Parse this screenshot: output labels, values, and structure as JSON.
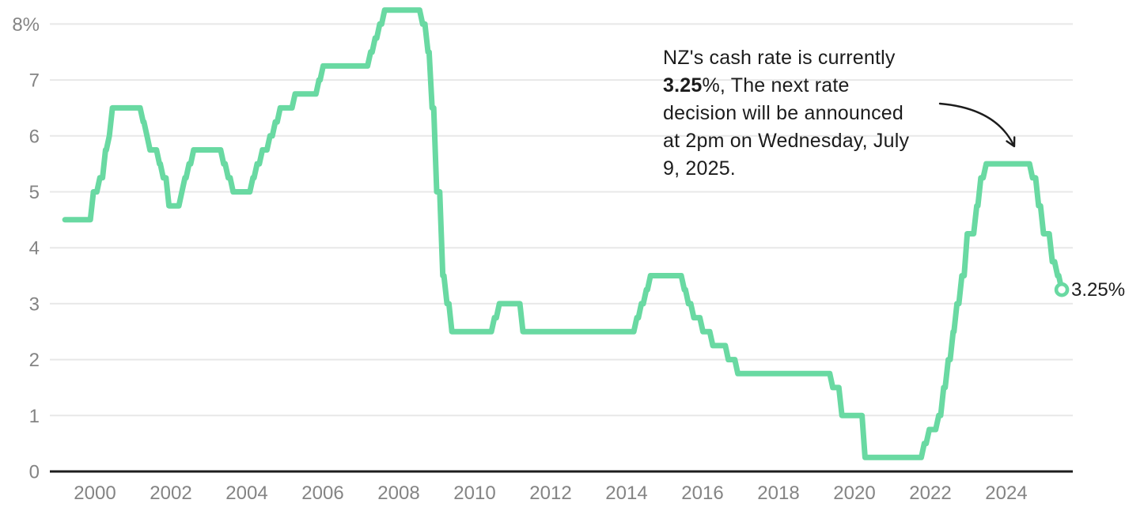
{
  "chart_data": {
    "type": "line",
    "subtype": "step",
    "title": "",
    "xlabel": "",
    "ylabel": "",
    "grid": true,
    "xlim": [
      1999.2,
      2025.6
    ],
    "ylim": [
      0,
      8.5
    ],
    "x_ticks": [
      {
        "value": 2000,
        "label": "2000"
      },
      {
        "value": 2002,
        "label": "2002"
      },
      {
        "value": 2004,
        "label": "2004"
      },
      {
        "value": 2006,
        "label": "2006"
      },
      {
        "value": 2008,
        "label": "2008"
      },
      {
        "value": 2010,
        "label": "2010"
      },
      {
        "value": 2012,
        "label": "2012"
      },
      {
        "value": 2014,
        "label": "2014"
      },
      {
        "value": 2016,
        "label": "2016"
      },
      {
        "value": 2018,
        "label": "2018"
      },
      {
        "value": 2020,
        "label": "2020"
      },
      {
        "value": 2022,
        "label": "2022"
      },
      {
        "value": 2024,
        "label": "2024"
      }
    ],
    "y_ticks": [
      {
        "value": 8,
        "label": "8%"
      },
      {
        "value": 7,
        "label": "7"
      },
      {
        "value": 6,
        "label": "6"
      },
      {
        "value": 5,
        "label": "5"
      },
      {
        "value": 4,
        "label": "4"
      },
      {
        "value": 3,
        "label": "3"
      },
      {
        "value": 2,
        "label": "2"
      },
      {
        "value": 1,
        "label": "1"
      },
      {
        "value": 0,
        "label": "0"
      }
    ],
    "steps": [
      [
        1999.21,
        4.5
      ],
      [
        1999.88,
        5.0
      ],
      [
        2000.05,
        5.25
      ],
      [
        2000.2,
        5.75
      ],
      [
        2000.3,
        6.0
      ],
      [
        2000.38,
        6.5
      ],
      [
        2001.19,
        6.25
      ],
      [
        2001.29,
        6.0
      ],
      [
        2001.37,
        5.75
      ],
      [
        2001.62,
        5.5
      ],
      [
        2001.72,
        5.25
      ],
      [
        2001.87,
        4.75
      ],
      [
        2002.21,
        5.0
      ],
      [
        2002.29,
        5.25
      ],
      [
        2002.4,
        5.5
      ],
      [
        2002.52,
        5.75
      ],
      [
        2003.31,
        5.5
      ],
      [
        2003.43,
        5.25
      ],
      [
        2003.56,
        5.0
      ],
      [
        2004.08,
        5.25
      ],
      [
        2004.19,
        5.5
      ],
      [
        2004.33,
        5.75
      ],
      [
        2004.53,
        6.0
      ],
      [
        2004.67,
        6.25
      ],
      [
        2004.8,
        6.5
      ],
      [
        2005.19,
        6.75
      ],
      [
        2005.82,
        7.0
      ],
      [
        2005.93,
        7.25
      ],
      [
        2007.18,
        7.5
      ],
      [
        2007.3,
        7.75
      ],
      [
        2007.42,
        8.0
      ],
      [
        2007.55,
        8.25
      ],
      [
        2008.55,
        8.0
      ],
      [
        2008.69,
        7.5
      ],
      [
        2008.8,
        6.5
      ],
      [
        2008.92,
        5.0
      ],
      [
        2009.08,
        3.5
      ],
      [
        2009.19,
        3.0
      ],
      [
        2009.32,
        2.5
      ],
      [
        2010.44,
        2.75
      ],
      [
        2010.57,
        3.0
      ],
      [
        2011.19,
        2.5
      ],
      [
        2014.19,
        2.75
      ],
      [
        2014.31,
        3.0
      ],
      [
        2014.44,
        3.25
      ],
      [
        2014.55,
        3.5
      ],
      [
        2015.44,
        3.25
      ],
      [
        2015.55,
        3.0
      ],
      [
        2015.69,
        2.75
      ],
      [
        2015.93,
        2.5
      ],
      [
        2016.19,
        2.25
      ],
      [
        2016.6,
        2.0
      ],
      [
        2016.85,
        1.75
      ],
      [
        2019.35,
        1.5
      ],
      [
        2019.59,
        1.0
      ],
      [
        2020.2,
        0.25
      ],
      [
        2021.76,
        0.5
      ],
      [
        2021.89,
        0.75
      ],
      [
        2022.14,
        1.0
      ],
      [
        2022.27,
        1.5
      ],
      [
        2022.39,
        2.0
      ],
      [
        2022.52,
        2.5
      ],
      [
        2022.62,
        3.0
      ],
      [
        2022.75,
        3.5
      ],
      [
        2022.89,
        4.25
      ],
      [
        2023.14,
        4.75
      ],
      [
        2023.25,
        5.25
      ],
      [
        2023.39,
        5.5
      ],
      [
        2024.61,
        5.25
      ],
      [
        2024.77,
        4.75
      ],
      [
        2024.9,
        4.25
      ],
      [
        2025.13,
        3.75
      ],
      [
        2025.27,
        3.5
      ],
      [
        2025.38,
        3.25
      ]
    ],
    "end_point": {
      "rate": 3.25,
      "label": "3.25%"
    }
  },
  "annotation": {
    "line1": "NZ's cash rate is currently",
    "line2_bold": "3.25",
    "line2_rest": "%, The next rate",
    "line3": "decision will be announced",
    "line4": "at 2pm on Wednesday, July",
    "line5": "9, 2025."
  },
  "colors": {
    "line": "#69d9a2",
    "grid": "#e8e8e8",
    "axis": "#1d1d1d",
    "tick_label": "#848484",
    "annotation_text": "#1c1c1c",
    "marker_fill": "#ffffff",
    "background": "#ffffff"
  }
}
